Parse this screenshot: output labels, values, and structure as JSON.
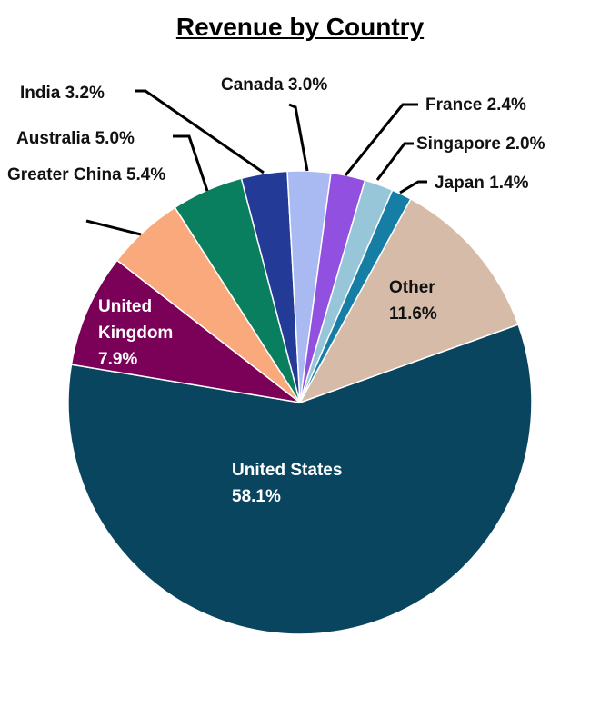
{
  "chart_data": {
    "type": "pie",
    "title": "Revenue by Country",
    "categories": [
      "United States",
      "United Kingdom",
      "Greater China",
      "Australia",
      "India",
      "Canada",
      "France",
      "Singapore",
      "Japan",
      "Other"
    ],
    "values": [
      58.1,
      7.9,
      5.4,
      5.0,
      3.2,
      3.0,
      2.4,
      2.0,
      1.4,
      11.6
    ],
    "value_labels": [
      "58.1%",
      "7.9%",
      "5.4%",
      "5.0%",
      "3.2%",
      "3.0%",
      "2.4%",
      "2.0%",
      "1.4%",
      "11.6%"
    ],
    "colors": [
      "#0a4560",
      "#7b0058",
      "#f9a97c",
      "#0a7f5f",
      "#233a96",
      "#a9b9f2",
      "#9150e0",
      "#96c6d8",
      "#167ea5",
      "#d5bba8"
    ]
  }
}
